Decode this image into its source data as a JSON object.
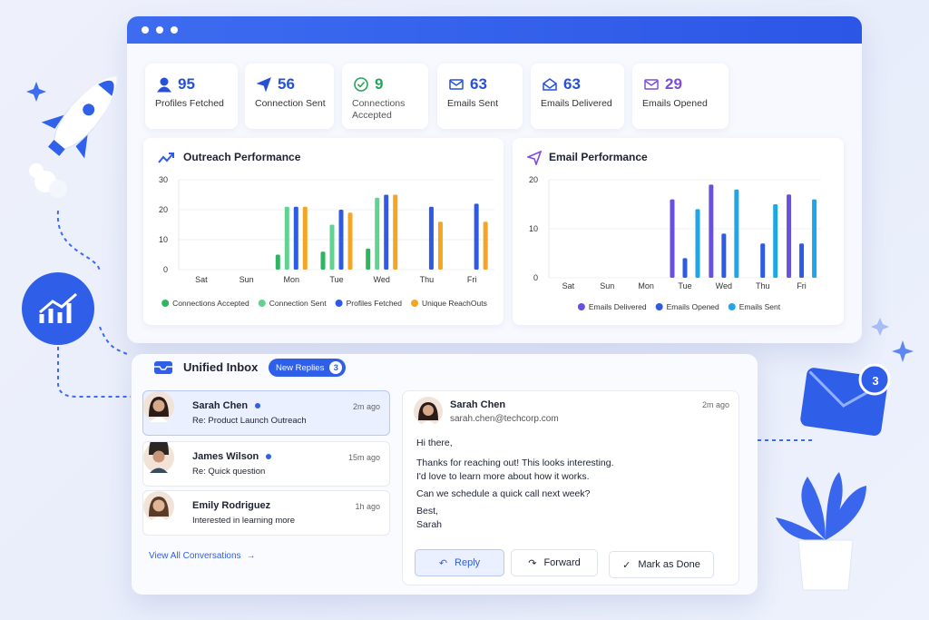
{
  "stats": [
    {
      "value": 95,
      "label": "Profiles Fetched"
    },
    {
      "value": 56,
      "label": "Connection Sent"
    },
    {
      "value": 9,
      "label": "Connections Accepted"
    },
    {
      "value": 63,
      "label": "Emails Sent"
    },
    {
      "value": 63,
      "label": "Emails Delivered"
    },
    {
      "value": 29,
      "label": "Emails Opened"
    }
  ],
  "charts": [
    {
      "type": "bar",
      "title": "Outreach Performance",
      "categories": [
        "Sat",
        "Sun",
        "Mon",
        "Tue",
        "Wed",
        "Thu",
        "Fri"
      ],
      "series": [
        {
          "name": "Connections Accepted",
          "color": "#2fb560",
          "values": [
            0,
            0,
            5,
            6,
            7,
            0,
            0
          ]
        },
        {
          "name": "Connection Sent",
          "color": "#5fd38f",
          "values": [
            0,
            0,
            21,
            15,
            24,
            0,
            0
          ]
        },
        {
          "name": "Profiles Fetched",
          "color": "#2d5be3",
          "values": [
            0,
            0,
            21,
            20,
            25,
            21,
            22
          ]
        },
        {
          "name": "Unique ReachOuts",
          "color": "#f5a524",
          "values": [
            0,
            0,
            21,
            19,
            25,
            16,
            16
          ]
        }
      ],
      "ylim": [
        0,
        30
      ],
      "yticks": [
        0,
        10,
        20,
        30
      ],
      "grid": true
    },
    {
      "type": "bar",
      "title": "Email Performance",
      "categories": [
        "Sat",
        "Sun",
        "Mon",
        "Tue",
        "Wed",
        "Thu",
        "Fri"
      ],
      "series": [
        {
          "name": "Emails Delivered",
          "color": "#6a4fe0",
          "values": [
            0,
            0,
            0,
            16,
            19,
            0,
            17
          ]
        },
        {
          "name": "Emails Opened",
          "color": "#2d5be3",
          "values": [
            0,
            0,
            0,
            4,
            9,
            7,
            7
          ]
        },
        {
          "name": "Emails Sent",
          "color": "#1fa6e6",
          "values": [
            0,
            0,
            0,
            14,
            18,
            15,
            16
          ]
        }
      ],
      "ylim": [
        0,
        20
      ],
      "yticks": [
        0,
        10,
        20
      ],
      "grid": true
    }
  ],
  "inbox": {
    "title": "Unified Inbox",
    "badge": {
      "label": "New Replies",
      "count": 3
    },
    "conversations": [
      {
        "name": "Sarah Chen",
        "time": "2m ago",
        "subject": "Re: Product Launch Outreach"
      },
      {
        "name": "James Wilson",
        "time": "15m ago",
        "subject": "Re: Quick question"
      },
      {
        "name": "Emily Rodriguez",
        "time": "1h ago",
        "subject": "Interested in learning more"
      }
    ],
    "view_all": "View All Conversations",
    "message": {
      "name": "Sarah Chen",
      "email": "sarah.chen@techcorp.com",
      "time": "2m ago",
      "body": [
        "Hi there,",
        "Thanks for reaching out! This looks interesting.",
        "I'd love to learn more about how it works.",
        "Can we schedule a quick call next week?",
        "Best,",
        "Sarah"
      ]
    },
    "actions": [
      "Reply",
      "Forward",
      "Mark as Done"
    ]
  },
  "notification_count": 3
}
